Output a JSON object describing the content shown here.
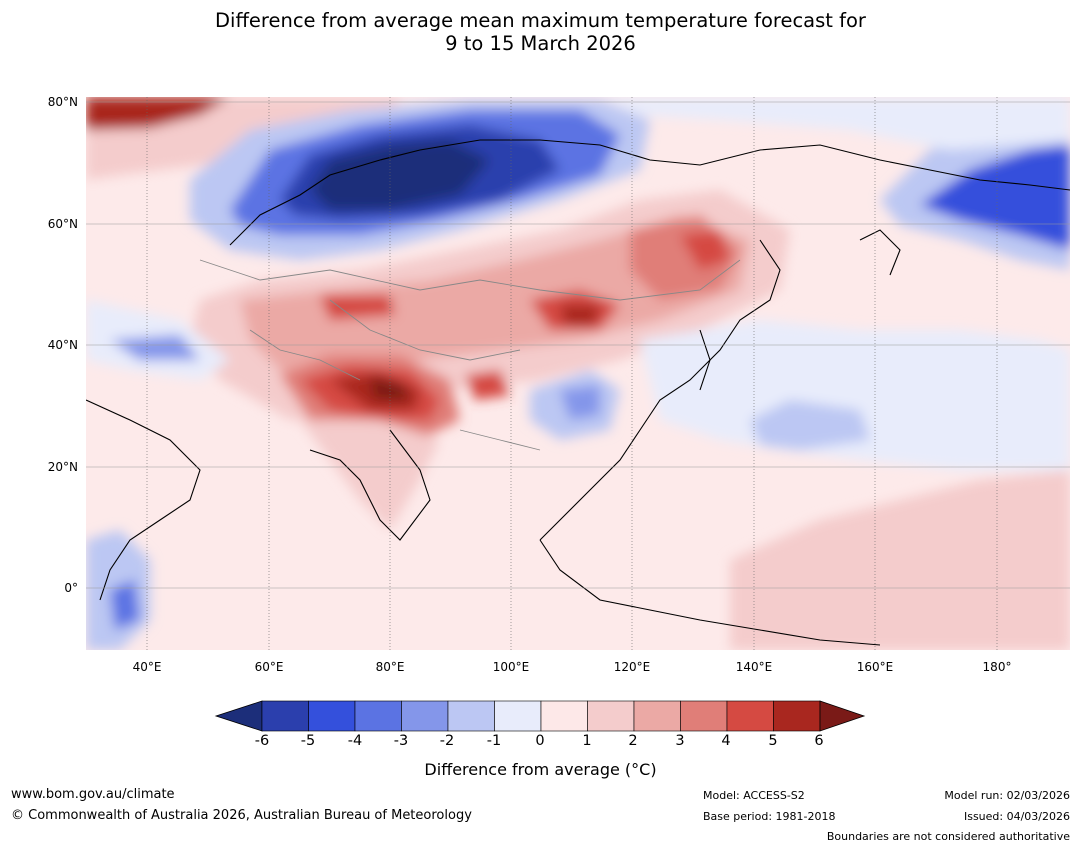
{
  "title": {
    "line1": "Difference from average mean maximum temperature forecast for",
    "line2": "9 to 15 March 2026"
  },
  "map": {
    "lat_labels": [
      "80°N",
      "60°N",
      "40°N",
      "20°N",
      "0°"
    ],
    "lon_labels": [
      "40°E",
      "60°E",
      "80°E",
      "100°E",
      "120°E",
      "140°E",
      "160°E",
      "180°"
    ],
    "extent": {
      "lon_min": 30,
      "lon_max": 190,
      "lat_min": -10,
      "lat_max": 80
    }
  },
  "colorbar": {
    "title": "Difference from average (°C)",
    "ticks": [
      "-6",
      "-5",
      "-4",
      "-3",
      "-2",
      "-1",
      "0",
      "1",
      "2",
      "3",
      "4",
      "5",
      "6"
    ],
    "colors": [
      "#1c2e7a",
      "#2b3fad",
      "#3450dc",
      "#5b73e3",
      "#8496ea",
      "#bcc7f3",
      "#e8ecfb",
      "#fde8e8",
      "#f4cccc",
      "#eba9a5",
      "#e07e78",
      "#d54a42",
      "#a9271f",
      "#7a1a17"
    ]
  },
  "footer": {
    "url": "www.bom.gov.au/climate",
    "copyright": "© Commonwealth of Australia 2026, Australian Bureau of Meteorology",
    "model": "Model: ACCESS-S2",
    "base_period": "Base period: 1981-2018",
    "model_run": "Model run: 02/03/2026",
    "issued": "Issued: 04/03/2026",
    "disclaimer": "Boundaries are not considered authoritative"
  }
}
